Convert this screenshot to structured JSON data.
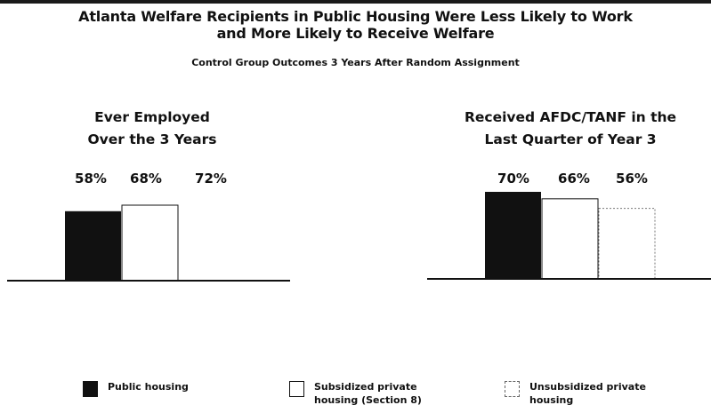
{
  "title_line1": "Atlanta Welfare Recipients in Public Housing Were Less Likely to Work",
  "title_line2": "and More Likely to Receive Welfare",
  "subtitle": "Control Group Outcomes 3 Years After Random Assignment",
  "colors": {
    "public_housing": "#111111",
    "subsidized": "#ffffff",
    "unsubsidized": "#ffffff",
    "axis": "#111111"
  },
  "legend": [
    {
      "label": "Public housing",
      "style": "solid"
    },
    {
      "label": "Subsidized private\nhousing (Section 8)",
      "style": "outline"
    },
    {
      "label": "Unsubsidized private\nhousing",
      "style": "dashed"
    }
  ],
  "chart_data": [
    {
      "type": "bar",
      "title": [
        "Ever Employed",
        "Over the 3 Years"
      ],
      "categories": [
        "Public housing",
        "Subsidized private housing (Section 8)",
        "Unsubsidized private housing"
      ],
      "values": [
        58,
        68,
        72
      ],
      "value_labels": [
        "58%",
        "68%",
        "72%"
      ],
      "unit": "%",
      "visible_bar_heights_relative": [
        0.92,
        1.0,
        0.0
      ],
      "xlabel": "",
      "ylabel": "",
      "legend": "bottom",
      "grid": false
    },
    {
      "type": "bar",
      "title": [
        "Received AFDC/TANF in the",
        "Last Quarter of Year 3"
      ],
      "categories": [
        "Public housing",
        "Subsidized private housing (Section 8)",
        "Unsubsidized private housing"
      ],
      "values": [
        70,
        66,
        56
      ],
      "value_labels": [
        "70%",
        "66%",
        "56%"
      ],
      "unit": "%",
      "visible_bar_heights_relative": [
        1.0,
        0.92,
        0.81
      ],
      "xlabel": "",
      "ylabel": "",
      "legend": "bottom",
      "grid": false
    }
  ]
}
